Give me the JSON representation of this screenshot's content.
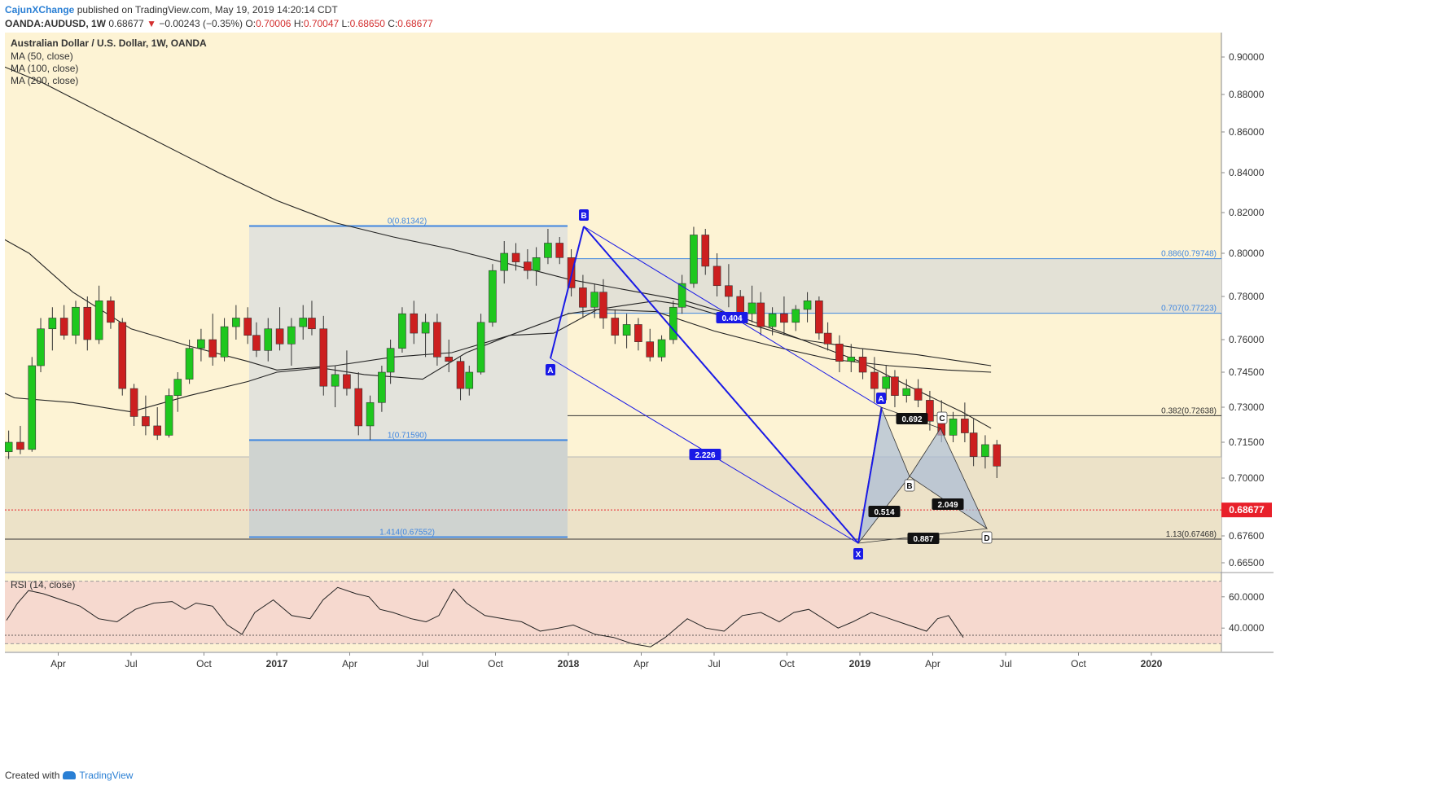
{
  "header": {
    "publisher": "CajunXChange",
    "published_text": "published on TradingView.com, May 19, 2019 14:20:14 CDT",
    "symbol_line": "OANDA:AUDUSD, 1W",
    "last": "0.68677",
    "change": "−0.00243 (−0.35%)",
    "o_label": "O:",
    "o": "0.70006",
    "h_label": "H:",
    "h": "0.70047",
    "l_label": "L:",
    "l": "0.68650",
    "c_label": "C:",
    "c": "0.68677"
  },
  "legend": {
    "title": "Australian Dollar / U.S. Dollar, 1W, OANDA",
    "ma50": "MA (50, close)",
    "ma100": "MA (100, close)",
    "ma200": "MA (200, close)",
    "rsi": "RSI (14, close)"
  },
  "footer": {
    "created_with": "Created with",
    "brand": "TradingView"
  },
  "colors": {
    "background": "#fdf3d4",
    "up": "#1ec71e",
    "down": "#cc1f1f",
    "harmonic": "#1a1ae6",
    "fib": "#3f86e0",
    "price_tag": "#e8202a",
    "rsi_band": "#f6d9cf"
  },
  "chart_data": {
    "type": "candlestick",
    "title": "Australian Dollar / U.S. Dollar, 1W, OANDA",
    "ylim": [
      0.6595,
      0.9075
    ],
    "y_ticks": [
      "0.90000",
      "0.88000",
      "0.86000",
      "0.84000",
      "0.82000",
      "0.80000",
      "0.78000",
      "0.76000",
      "0.74500",
      "0.73000",
      "0.71500",
      "0.70000",
      "0.67600",
      "0.66500"
    ],
    "y_tick_values": [
      0.9,
      0.88,
      0.86,
      0.84,
      0.82,
      0.8,
      0.78,
      0.76,
      0.745,
      0.73,
      0.715,
      0.7,
      0.676,
      0.665
    ],
    "x_ticks": [
      "Apr",
      "Jul",
      "Oct",
      "2017",
      "Apr",
      "Jul",
      "Oct",
      "2018",
      "Apr",
      "Jul",
      "Oct",
      "2019",
      "Apr",
      "Jul",
      "Oct",
      "2020"
    ],
    "x_tick_years": [
      2016.25,
      2016.5,
      2016.75,
      2017.0,
      2017.25,
      2017.5,
      2017.75,
      2018.0,
      2018.25,
      2018.5,
      2018.75,
      2019.0,
      2019.25,
      2019.5,
      2019.75,
      2020.0
    ],
    "last_price": {
      "label": "0.68677",
      "value": 0.68677
    },
    "candles": [
      {
        "t": 2016.0,
        "o": 0.705,
        "h": 0.712,
        "l": 0.7,
        "c": 0.708
      },
      {
        "t": 2016.04,
        "o": 0.708,
        "h": 0.716,
        "l": 0.697,
        "c": 0.711
      },
      {
        "t": 2016.08,
        "o": 0.711,
        "h": 0.72,
        "l": 0.708,
        "c": 0.715
      },
      {
        "t": 2016.12,
        "o": 0.715,
        "h": 0.722,
        "l": 0.71,
        "c": 0.712
      },
      {
        "t": 2016.16,
        "o": 0.712,
        "h": 0.752,
        "l": 0.711,
        "c": 0.748
      },
      {
        "t": 2016.19,
        "o": 0.748,
        "h": 0.77,
        "l": 0.745,
        "c": 0.765
      },
      {
        "t": 2016.23,
        "o": 0.765,
        "h": 0.775,
        "l": 0.755,
        "c": 0.77
      },
      {
        "t": 2016.27,
        "o": 0.77,
        "h": 0.776,
        "l": 0.76,
        "c": 0.762
      },
      {
        "t": 2016.31,
        "o": 0.762,
        "h": 0.778,
        "l": 0.758,
        "c": 0.775
      },
      {
        "t": 2016.35,
        "o": 0.775,
        "h": 0.78,
        "l": 0.755,
        "c": 0.76
      },
      {
        "t": 2016.39,
        "o": 0.76,
        "h": 0.785,
        "l": 0.758,
        "c": 0.778
      },
      {
        "t": 2016.43,
        "o": 0.778,
        "h": 0.78,
        "l": 0.765,
        "c": 0.768
      },
      {
        "t": 2016.47,
        "o": 0.768,
        "h": 0.77,
        "l": 0.735,
        "c": 0.738
      },
      {
        "t": 2016.51,
        "o": 0.738,
        "h": 0.74,
        "l": 0.722,
        "c": 0.726
      },
      {
        "t": 2016.55,
        "o": 0.726,
        "h": 0.735,
        "l": 0.718,
        "c": 0.722
      },
      {
        "t": 2016.59,
        "o": 0.722,
        "h": 0.73,
        "l": 0.716,
        "c": 0.718
      },
      {
        "t": 2016.63,
        "o": 0.718,
        "h": 0.738,
        "l": 0.717,
        "c": 0.735
      },
      {
        "t": 2016.66,
        "o": 0.735,
        "h": 0.745,
        "l": 0.728,
        "c": 0.742
      },
      {
        "t": 2016.7,
        "o": 0.742,
        "h": 0.76,
        "l": 0.74,
        "c": 0.756
      },
      {
        "t": 2016.74,
        "o": 0.756,
        "h": 0.765,
        "l": 0.75,
        "c": 0.76
      },
      {
        "t": 2016.78,
        "o": 0.76,
        "h": 0.772,
        "l": 0.748,
        "c": 0.752
      },
      {
        "t": 2016.82,
        "o": 0.752,
        "h": 0.77,
        "l": 0.75,
        "c": 0.766
      },
      {
        "t": 2016.86,
        "o": 0.766,
        "h": 0.776,
        "l": 0.76,
        "c": 0.77
      },
      {
        "t": 2016.9,
        "o": 0.77,
        "h": 0.775,
        "l": 0.758,
        "c": 0.762
      },
      {
        "t": 2016.93,
        "o": 0.762,
        "h": 0.768,
        "l": 0.752,
        "c": 0.755
      },
      {
        "t": 2016.97,
        "o": 0.755,
        "h": 0.77,
        "l": 0.75,
        "c": 0.765
      },
      {
        "t": 2017.01,
        "o": 0.765,
        "h": 0.775,
        "l": 0.755,
        "c": 0.758
      },
      {
        "t": 2017.05,
        "o": 0.758,
        "h": 0.77,
        "l": 0.748,
        "c": 0.766
      },
      {
        "t": 2017.09,
        "o": 0.766,
        "h": 0.776,
        "l": 0.76,
        "c": 0.77
      },
      {
        "t": 2017.12,
        "o": 0.77,
        "h": 0.778,
        "l": 0.762,
        "c": 0.765
      },
      {
        "t": 2017.16,
        "o": 0.765,
        "h": 0.771,
        "l": 0.735,
        "c": 0.739
      },
      {
        "t": 2017.2,
        "o": 0.739,
        "h": 0.748,
        "l": 0.73,
        "c": 0.744
      },
      {
        "t": 2017.24,
        "o": 0.744,
        "h": 0.755,
        "l": 0.735,
        "c": 0.738
      },
      {
        "t": 2017.28,
        "o": 0.738,
        "h": 0.745,
        "l": 0.718,
        "c": 0.722
      },
      {
        "t": 2017.32,
        "o": 0.722,
        "h": 0.735,
        "l": 0.716,
        "c": 0.732
      },
      {
        "t": 2017.36,
        "o": 0.732,
        "h": 0.748,
        "l": 0.728,
        "c": 0.745
      },
      {
        "t": 2017.39,
        "o": 0.745,
        "h": 0.76,
        "l": 0.74,
        "c": 0.756
      },
      {
        "t": 2017.43,
        "o": 0.756,
        "h": 0.775,
        "l": 0.754,
        "c": 0.772
      },
      {
        "t": 2017.47,
        "o": 0.772,
        "h": 0.778,
        "l": 0.758,
        "c": 0.763
      },
      {
        "t": 2017.51,
        "o": 0.763,
        "h": 0.772,
        "l": 0.752,
        "c": 0.768
      },
      {
        "t": 2017.55,
        "o": 0.768,
        "h": 0.772,
        "l": 0.748,
        "c": 0.752
      },
      {
        "t": 2017.59,
        "o": 0.752,
        "h": 0.76,
        "l": 0.745,
        "c": 0.75
      },
      {
        "t": 2017.63,
        "o": 0.75,
        "h": 0.752,
        "l": 0.733,
        "c": 0.738
      },
      {
        "t": 2017.66,
        "o": 0.738,
        "h": 0.748,
        "l": 0.735,
        "c": 0.745
      },
      {
        "t": 2017.7,
        "o": 0.745,
        "h": 0.772,
        "l": 0.744,
        "c": 0.768
      },
      {
        "t": 2017.74,
        "o": 0.768,
        "h": 0.795,
        "l": 0.766,
        "c": 0.792
      },
      {
        "t": 2017.78,
        "o": 0.792,
        "h": 0.806,
        "l": 0.786,
        "c": 0.8
      },
      {
        "t": 2017.82,
        "o": 0.8,
        "h": 0.805,
        "l": 0.792,
        "c": 0.796
      },
      {
        "t": 2017.86,
        "o": 0.796,
        "h": 0.802,
        "l": 0.788,
        "c": 0.792
      },
      {
        "t": 2017.89,
        "o": 0.792,
        "h": 0.803,
        "l": 0.785,
        "c": 0.798
      },
      {
        "t": 2017.93,
        "o": 0.798,
        "h": 0.812,
        "l": 0.795,
        "c": 0.805
      },
      {
        "t": 2017.97,
        "o": 0.805,
        "h": 0.808,
        "l": 0.795,
        "c": 0.798
      },
      {
        "t": 2018.01,
        "o": 0.798,
        "h": 0.802,
        "l": 0.78,
        "c": 0.784
      },
      {
        "t": 2018.05,
        "o": 0.784,
        "h": 0.79,
        "l": 0.77,
        "c": 0.775
      },
      {
        "t": 2018.09,
        "o": 0.775,
        "h": 0.786,
        "l": 0.77,
        "c": 0.782
      },
      {
        "t": 2018.12,
        "o": 0.782,
        "h": 0.788,
        "l": 0.765,
        "c": 0.77
      },
      {
        "t": 2018.16,
        "o": 0.77,
        "h": 0.774,
        "l": 0.758,
        "c": 0.762
      },
      {
        "t": 2018.2,
        "o": 0.762,
        "h": 0.772,
        "l": 0.756,
        "c": 0.767
      },
      {
        "t": 2018.24,
        "o": 0.767,
        "h": 0.77,
        "l": 0.755,
        "c": 0.759
      },
      {
        "t": 2018.28,
        "o": 0.759,
        "h": 0.765,
        "l": 0.75,
        "c": 0.752
      },
      {
        "t": 2018.32,
        "o": 0.752,
        "h": 0.762,
        "l": 0.75,
        "c": 0.76
      },
      {
        "t": 2018.36,
        "o": 0.76,
        "h": 0.778,
        "l": 0.758,
        "c": 0.775
      },
      {
        "t": 2018.39,
        "o": 0.775,
        "h": 0.79,
        "l": 0.772,
        "c": 0.786
      },
      {
        "t": 2018.43,
        "o": 0.786,
        "h": 0.813,
        "l": 0.784,
        "c": 0.809
      },
      {
        "t": 2018.47,
        "o": 0.809,
        "h": 0.812,
        "l": 0.79,
        "c": 0.794
      },
      {
        "t": 2018.51,
        "o": 0.794,
        "h": 0.8,
        "l": 0.78,
        "c": 0.785
      },
      {
        "t": 2018.55,
        "o": 0.785,
        "h": 0.795,
        "l": 0.775,
        "c": 0.78
      },
      {
        "t": 2018.59,
        "o": 0.78,
        "h": 0.783,
        "l": 0.768,
        "c": 0.772
      },
      {
        "t": 2018.63,
        "o": 0.772,
        "h": 0.785,
        "l": 0.768,
        "c": 0.777
      },
      {
        "t": 2018.66,
        "o": 0.777,
        "h": 0.782,
        "l": 0.762,
        "c": 0.766
      },
      {
        "t": 2018.7,
        "o": 0.766,
        "h": 0.775,
        "l": 0.762,
        "c": 0.772
      },
      {
        "t": 2018.74,
        "o": 0.772,
        "h": 0.78,
        "l": 0.762,
        "c": 0.768
      },
      {
        "t": 2018.78,
        "o": 0.768,
        "h": 0.776,
        "l": 0.764,
        "c": 0.774
      },
      {
        "t": 2018.82,
        "o": 0.774,
        "h": 0.782,
        "l": 0.768,
        "c": 0.778
      },
      {
        "t": 2018.86,
        "o": 0.778,
        "h": 0.78,
        "l": 0.76,
        "c": 0.763
      },
      {
        "t": 2018.89,
        "o": 0.763,
        "h": 0.768,
        "l": 0.755,
        "c": 0.758
      },
      {
        "t": 2018.93,
        "o": 0.758,
        "h": 0.762,
        "l": 0.745,
        "c": 0.75
      },
      {
        "t": 2018.97,
        "o": 0.75,
        "h": 0.758,
        "l": 0.745,
        "c": 0.752
      },
      {
        "t": 2019.01,
        "o": 0.752,
        "h": 0.756,
        "l": 0.742,
        "c": 0.745
      },
      {
        "t": 2019.05,
        "o": 0.745,
        "h": 0.752,
        "l": 0.732,
        "c": 0.738
      },
      {
        "t": 2019.09,
        "o": 0.738,
        "h": 0.748,
        "l": 0.733,
        "c": 0.743
      },
      {
        "t": 2019.12,
        "o": 0.743,
        "h": 0.746,
        "l": 0.73,
        "c": 0.735
      },
      {
        "t": 2019.16,
        "o": 0.735,
        "h": 0.742,
        "l": 0.732,
        "c": 0.738
      },
      {
        "t": 2019.2,
        "o": 0.738,
        "h": 0.742,
        "l": 0.73,
        "c": 0.733
      },
      {
        "t": 2019.24,
        "o": 0.733,
        "h": 0.737,
        "l": 0.72,
        "c": 0.724
      },
      {
        "t": 2019.28,
        "o": 0.724,
        "h": 0.733,
        "l": 0.715,
        "c": 0.718
      },
      {
        "t": 2019.32,
        "o": 0.718,
        "h": 0.728,
        "l": 0.715,
        "c": 0.725
      },
      {
        "t": 2019.36,
        "o": 0.725,
        "h": 0.732,
        "l": 0.715,
        "c": 0.719
      },
      {
        "t": 2019.39,
        "o": 0.719,
        "h": 0.725,
        "l": 0.705,
        "c": 0.709
      },
      {
        "t": 2019.43,
        "o": 0.709,
        "h": 0.718,
        "l": 0.704,
        "c": 0.714
      },
      {
        "t": 2019.47,
        "o": 0.714,
        "h": 0.716,
        "l": 0.7,
        "c": 0.705
      }
    ],
    "fib_left": [
      {
        "label": "0(0.81342)",
        "value": 0.81342
      },
      {
        "label": "1(0.71590)",
        "value": 0.7159
      },
      {
        "label": "1.414(0.67552)",
        "value": 0.67552
      }
    ],
    "fib_right": [
      {
        "label": "0.886(0.79748)",
        "value": 0.79748
      },
      {
        "label": "0.707(0.77223)",
        "value": 0.77223
      },
      {
        "label": "0.382(0.72638)",
        "value": 0.72638
      },
      {
        "label": "1.13(0.67468)",
        "value": 0.67468
      }
    ],
    "pattern_labels": {
      "A": "A",
      "B": "B",
      "X": "X",
      "C": "C",
      "D": "D"
    },
    "ratios": [
      "0.404",
      "2.226",
      "0.692",
      "0.514",
      "2.049",
      "0.887"
    ],
    "rsi": {
      "y_ticks": [
        "60.0000",
        "40.0000"
      ],
      "y_tick_values": [
        60,
        40
      ],
      "upper": 70,
      "lower": 30,
      "ylim": [
        25,
        75
      ]
    }
  }
}
